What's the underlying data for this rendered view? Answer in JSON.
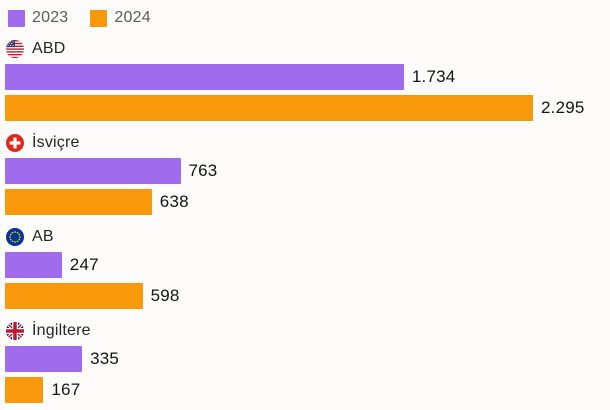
{
  "legend": {
    "items": [
      {
        "label": "2023",
        "color": "#A06BEC"
      },
      {
        "label": "2024",
        "color": "#F8990B"
      }
    ]
  },
  "chart_data": {
    "type": "bar",
    "orientation": "horizontal",
    "title": "",
    "categories": [
      "ABD",
      "İsviçre",
      "AB",
      "İngiltere"
    ],
    "category_icons": [
      "usa-flag-icon",
      "switzerland-flag-icon",
      "eu-flag-icon",
      "uk-flag-icon"
    ],
    "series": [
      {
        "name": "2023",
        "color": "#A06BEC",
        "values": [
          1734,
          763,
          247,
          335
        ]
      },
      {
        "name": "2024",
        "color": "#F8990B",
        "values": [
          2295,
          638,
          598,
          167
        ]
      }
    ],
    "value_labels": {
      "2023": [
        "1.734",
        "763",
        "247",
        "335"
      ],
      "2024": [
        "2.295",
        "638",
        "598",
        "167"
      ]
    },
    "xlim": [
      0,
      2295
    ],
    "legend_position": "top-left",
    "grid": false,
    "value_labels_shown": true
  },
  "groups": [
    {
      "name": "ABD",
      "flag": "usa-flag-icon",
      "bars": [
        {
          "year": "2023",
          "value": 1734,
          "label": "1.734"
        },
        {
          "year": "2024",
          "value": 2295,
          "label": "2.295"
        }
      ]
    },
    {
      "name": "İsviçre",
      "flag": "switzerland-flag-icon",
      "bars": [
        {
          "year": "2023",
          "value": 763,
          "label": "763"
        },
        {
          "year": "2024",
          "value": 638,
          "label": "638"
        }
      ]
    },
    {
      "name": "AB",
      "flag": "eu-flag-icon",
      "bars": [
        {
          "year": "2023",
          "value": 247,
          "label": "247"
        },
        {
          "year": "2024",
          "value": 598,
          "label": "598"
        }
      ]
    },
    {
      "name": "İngiltere",
      "flag": "uk-flag-icon",
      "bars": [
        {
          "year": "2023",
          "value": 335,
          "label": "335"
        },
        {
          "year": "2024",
          "value": 167,
          "label": "167"
        }
      ]
    }
  ]
}
